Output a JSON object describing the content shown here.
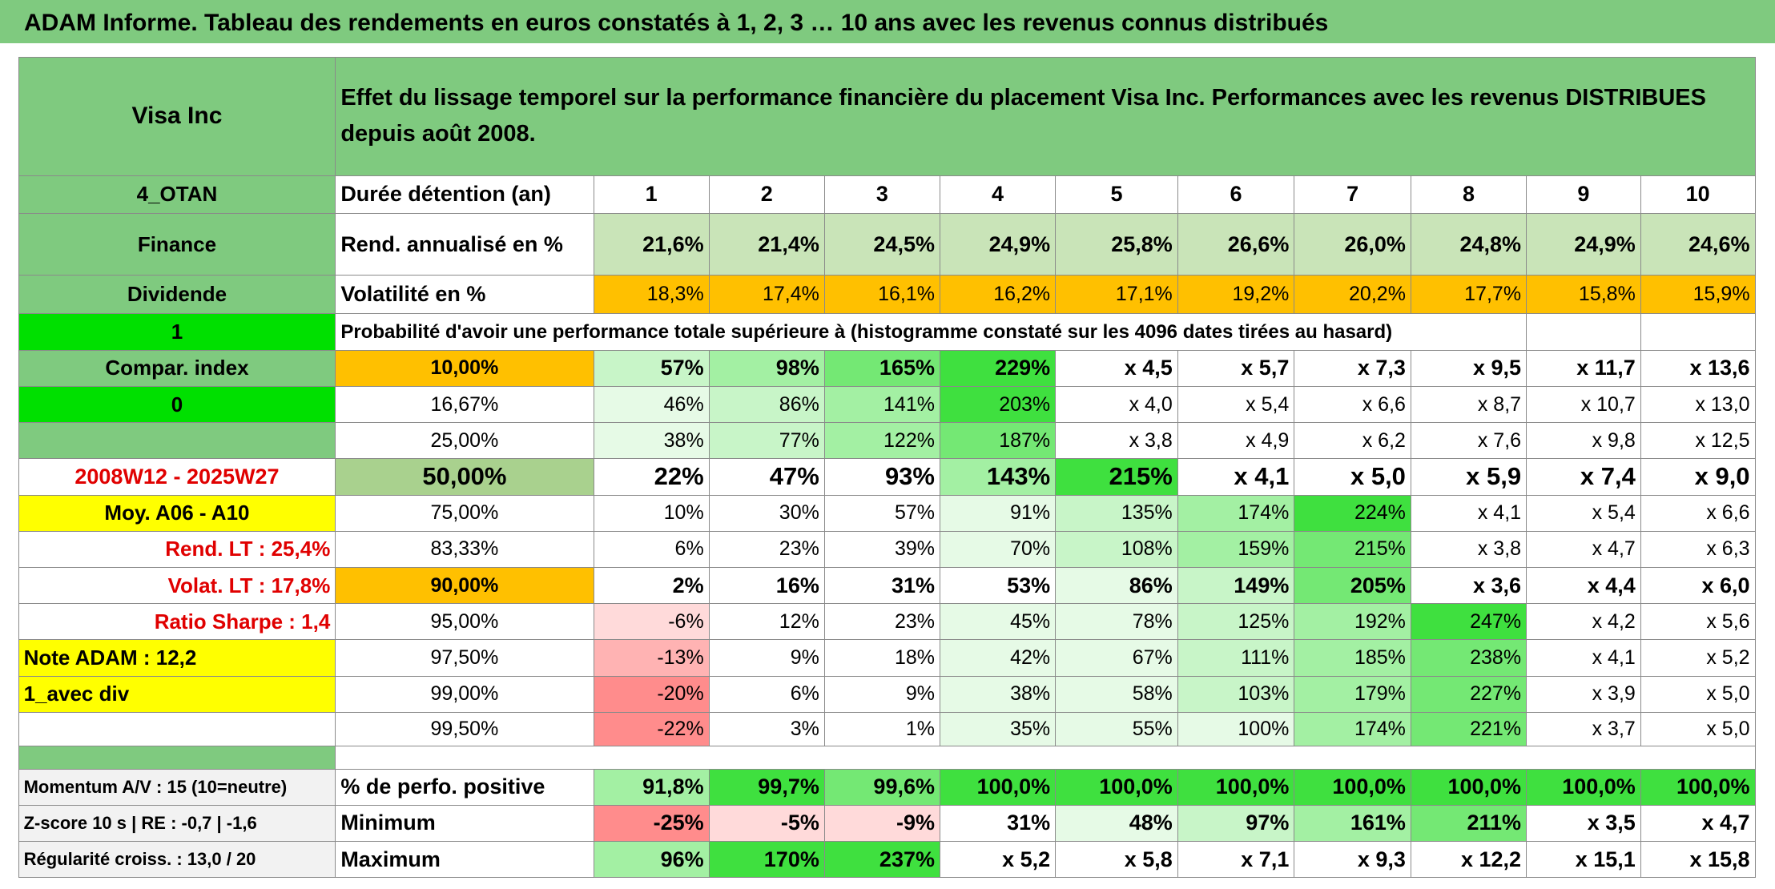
{
  "header": {
    "title": "ADAM Informe. Tableau des rendements en euros constatés à 1, 2, 3 … 10 ans avec les revenus connus distribués"
  },
  "table": {
    "name": "Visa Inc",
    "description": "Effet du lissage temporel sur la performance financière du placement Visa Inc. Performances avec les revenus DISTRIBUES depuis août 2008.",
    "rows": [
      [
        "4_OTAN",
        "Durée détention (an)",
        "1",
        "2",
        "3",
        "4",
        "5",
        "6",
        "7",
        "8",
        "9",
        "10"
      ],
      [
        "Finance",
        "Rend. annualisé en %",
        "21,6%",
        "21,4%",
        "24,5%",
        "24,9%",
        "25,8%",
        "26,6%",
        "26,0%",
        "24,8%",
        "24,9%",
        "24,6%"
      ],
      [
        "Dividende",
        "Volatilité en %",
        "18,3%",
        "17,4%",
        "16,1%",
        "16,2%",
        "17,1%",
        "19,2%",
        "20,2%",
        "17,7%",
        "15,8%",
        "15,9%"
      ],
      [
        "1",
        "Probabilité d'avoir une performance totale supérieure à (histogramme constaté sur les 4096 dates tirées au hasard)"
      ],
      [
        "Compar. index",
        "10,00%",
        "57%",
        "98%",
        "165%",
        "229%",
        "x 4,5",
        "x 5,7",
        "x 7,3",
        "x 9,5",
        "x 11,7",
        "x 13,6"
      ],
      [
        "0",
        "16,67%",
        "46%",
        "86%",
        "141%",
        "203%",
        "x 4,0",
        "x 5,4",
        "x 6,6",
        "x 8,7",
        "x 10,7",
        "x 13,0"
      ],
      [
        null,
        "25,00%",
        "38%",
        "77%",
        "122%",
        "187%",
        "x 3,8",
        "x 4,9",
        "x 6,2",
        "x 7,6",
        "x 9,8",
        "x 12,5"
      ],
      [
        "2008W12 - 2025W27",
        "50,00%",
        "22%",
        "47%",
        "93%",
        "143%",
        "215%",
        "x 4,1",
        "x 5,0",
        "x 5,9",
        "x 7,4",
        "x 9,0"
      ],
      [
        "Moy. A06 - A10",
        "75,00%",
        "10%",
        "30%",
        "57%",
        "91%",
        "135%",
        "174%",
        "224%",
        "x 4,1",
        "x 5,4",
        "x 6,6"
      ],
      [
        "Rend. LT :   25,4%",
        "83,33%",
        "6%",
        "23%",
        "39%",
        "70%",
        "108%",
        "159%",
        "215%",
        "x 3,8",
        "x 4,7",
        "x 6,3"
      ],
      [
        "Volat. LT :   17,8%",
        "90,00%",
        "2%",
        "16%",
        "31%",
        "53%",
        "86%",
        "149%",
        "205%",
        "x 3,6",
        "x 4,4",
        "x 6,0"
      ],
      [
        "Ratio Sharpe :   1,4",
        "95,00%",
        "-6%",
        "12%",
        "23%",
        "45%",
        "78%",
        "125%",
        "192%",
        "247%",
        "x 4,2",
        "x 5,6"
      ],
      [
        "Note ADAM : 12,2",
        "97,50%",
        "-13%",
        "9%",
        "18%",
        "42%",
        "67%",
        "111%",
        "185%",
        "238%",
        "x 4,1",
        "x 5,2"
      ],
      [
        "1_avec div",
        "99,00%",
        "-20%",
        "6%",
        "9%",
        "38%",
        "58%",
        "103%",
        "179%",
        "227%",
        "x 3,9",
        "x 5,0"
      ],
      [
        null,
        "99,50%",
        "-22%",
        "3%",
        "1%",
        "35%",
        "55%",
        "100%",
        "174%",
        "221%",
        "x 3,7",
        "x 5,0"
      ],
      [
        "Momentum A/V : 15 (10=neutre)",
        "% de perfo. positive",
        "91,8%",
        "99,7%",
        "99,6%",
        "100,0%",
        "100,0%",
        "100,0%",
        "100,0%",
        "100,0%",
        "100,0%",
        "100,0%"
      ],
      [
        "Z-score 10 s | RE : -0,7 | -1,6",
        "Minimum",
        "-25%",
        "-5%",
        "-9%",
        "31%",
        "48%",
        "97%",
        "161%",
        "211%",
        "x 3,5",
        "x 4,7"
      ],
      [
        "Régularité croiss. : 13,0 / 20",
        "Maximum",
        "96%",
        "170%",
        "237%",
        "x 5,2",
        "x 5,8",
        "x 7,1",
        "x 9,3",
        "x 12,2",
        "x 15,1",
        "x 15,8"
      ]
    ]
  }
}
